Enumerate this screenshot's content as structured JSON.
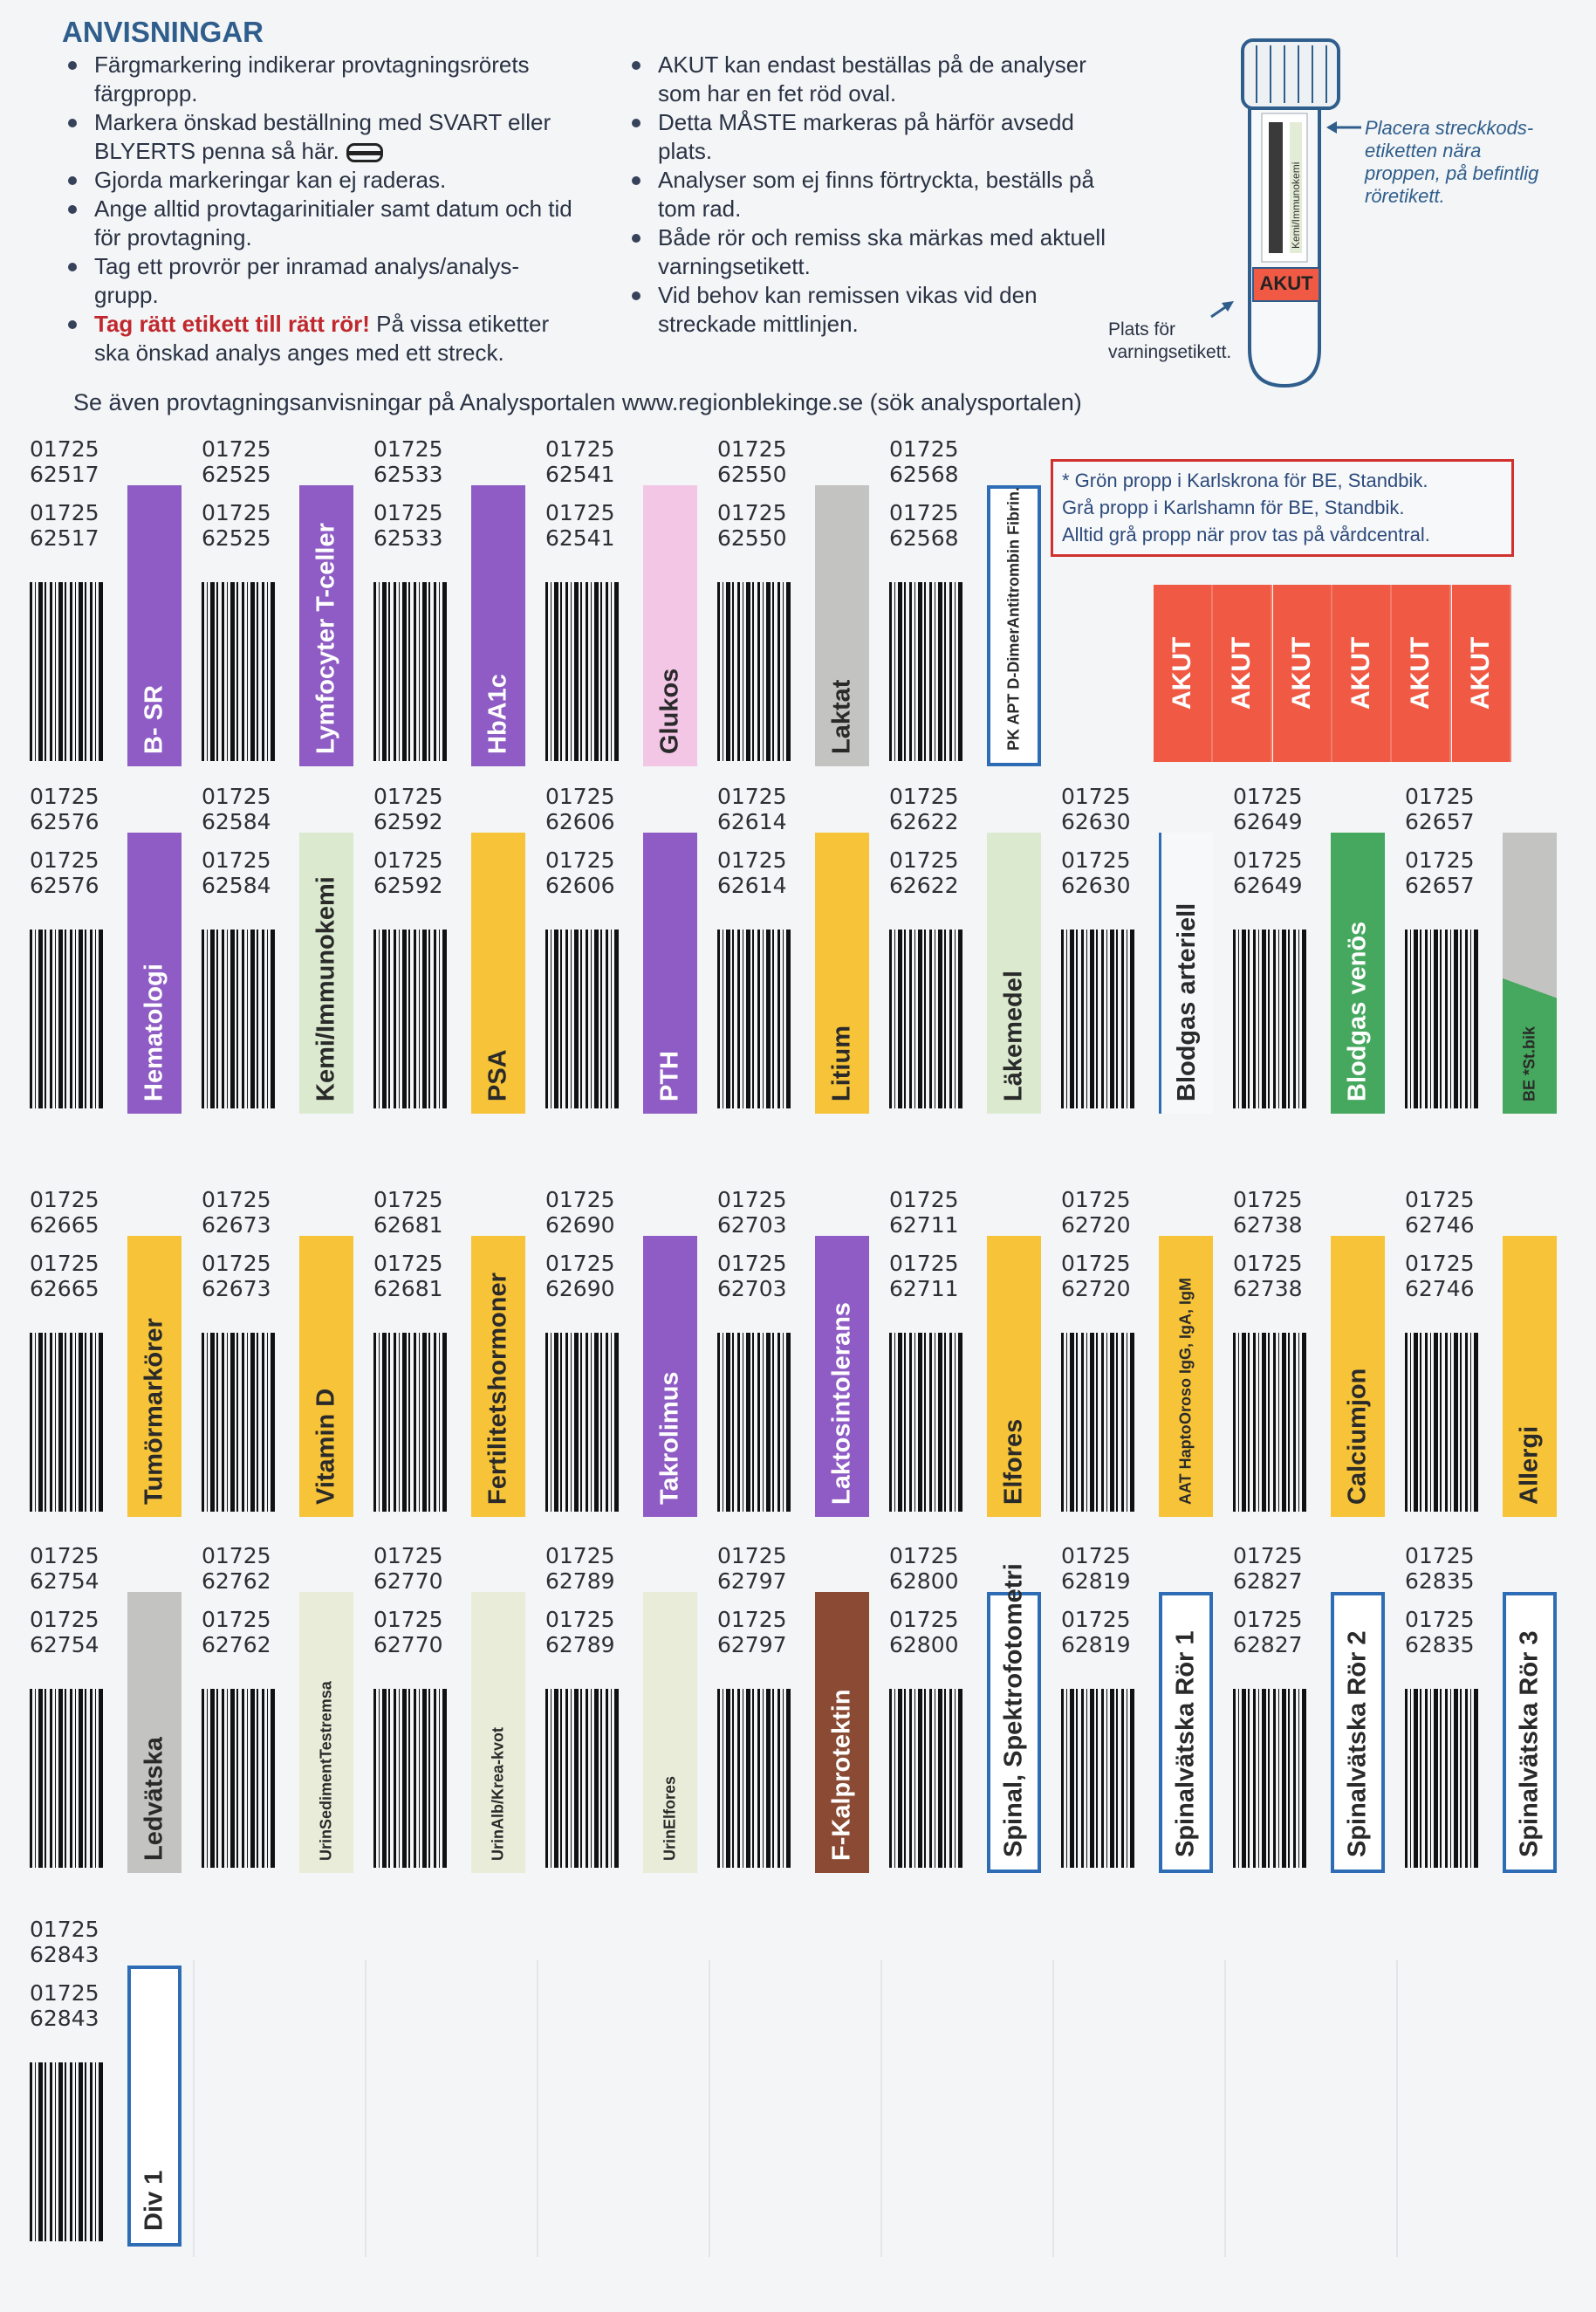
{
  "header": {
    "title": "ANVISNINGAR"
  },
  "instructions": {
    "left": [
      "Färgmarkering indikerar provtagningsrörets färgpropp.",
      "Markera önskad beställning med SVART eller BLYERTS penna så här.",
      "Gjorda markeringar kan ej raderas.",
      "Ange alltid provtagarinitialer samt datum och tid för provtagning.",
      "Tag ett provrör per inramad analys/analys-grupp.",
      {
        "emphasis": "Tag rätt etikett till rätt rör!",
        "text": "På vissa etiketter ska önskad analys anges med ett streck."
      }
    ],
    "right": [
      "AKUT kan endast beställas på de analyser som har en fet röd oval.",
      "Detta MÅSTE markeras på härför avsedd plats.",
      "Analyser som ej finns förtryckta, beställs på tom rad.",
      "Både rör och remiss ska märkas med aktuell varningsetikett.",
      "Vid behov kan remissen vikas vid den streckade mittlinjen."
    ]
  },
  "tube": {
    "label": "Kemi/Immunokemi",
    "akut": "AKUT",
    "barcode_note": [
      "Placera streckkods-",
      "etiketten nära",
      "proppen, på befintlig",
      "röretikett."
    ],
    "warning_note": [
      "Plats för",
      "varningsetikett."
    ]
  },
  "see_also": "Se även provtagningsanvisningar på Analysportalen www.regionblekinge.se (sök analysportalen)",
  "note": {
    "lines": [
      "* Grön propp i Karlskrona för BE, Standbik.",
      "Grå propp i Karlshamn för BE, Standbik.",
      "Alltid grå propp när prov tas på vårdcentral."
    ]
  },
  "akut": [
    "AKUT",
    "AKUT",
    "AKUT",
    "AKUT",
    "AKUT",
    "AKUT"
  ],
  "rows": [
    [
      {
        "prefix": "01725",
        "code": "62517",
        "lines": [
          "B- SR"
        ],
        "style": "fill",
        "color": "#8e5cc4"
      },
      {
        "prefix": "01725",
        "code": "62525",
        "lines": [
          "Lymfocyter T-celler"
        ],
        "style": "fill",
        "color": "#8e5cc4"
      },
      {
        "prefix": "01725",
        "code": "62533",
        "lines": [
          "HbA1c"
        ],
        "style": "fill",
        "color": "#8e5cc4"
      },
      {
        "prefix": "01725",
        "code": "62541",
        "lines": [
          "Glukos"
        ],
        "style": "fill",
        "color": "#f3c6e6"
      },
      {
        "prefix": "01725",
        "code": "62550",
        "lines": [
          "Laktat"
        ],
        "style": "fill",
        "color": "#c3c3c1"
      },
      {
        "prefix": "01725",
        "code": "62568",
        "lines": [
          "PK  APT  D-Dimer",
          "Antitrombin  Fibrin."
        ],
        "style": "outline",
        "color": "#2e6db5"
      }
    ],
    [
      {
        "prefix": "01725",
        "code": "62576",
        "lines": [
          "Hematologi"
        ],
        "style": "fill",
        "color": "#8e5cc4"
      },
      {
        "prefix": "01725",
        "code": "62584",
        "lines": [
          "Kemi/Immunokemi"
        ],
        "style": "fill",
        "color": "#dbe9cf"
      },
      {
        "prefix": "01725",
        "code": "62592",
        "lines": [
          "PSA"
        ],
        "style": "fill",
        "color": "#f7c338"
      },
      {
        "prefix": "01725",
        "code": "62606",
        "lines": [
          "PTH"
        ],
        "style": "fill",
        "color": "#8e5cc4"
      },
      {
        "prefix": "01725",
        "code": "62614",
        "lines": [
          "Litium"
        ],
        "style": "fill",
        "color": "#f7c338"
      },
      {
        "prefix": "01725",
        "code": "62622",
        "lines": [
          "Läkemedel"
        ],
        "style": "fill",
        "color": "#dbe9cf"
      },
      {
        "prefix": "01725",
        "code": "62630",
        "lines": [
          "Blodgas arteriell"
        ],
        "style": "line",
        "color": "#2e6db5"
      },
      {
        "prefix": "01725",
        "code": "62649",
        "lines": [
          "Blodgas venös"
        ],
        "style": "fill",
        "color": "#45a85e"
      },
      {
        "prefix": "01725",
        "code": "62657",
        "lines": [
          "BE *",
          "St.bik"
        ],
        "style": "diagonal",
        "color": "#45a85e"
      }
    ],
    [
      {
        "prefix": "01725",
        "code": "62665",
        "lines": [
          "Tumörmarkörer"
        ],
        "style": "fill",
        "color": "#f7c338"
      },
      {
        "prefix": "01725",
        "code": "62673",
        "lines": [
          "Vitamin D"
        ],
        "style": "fill",
        "color": "#f7c338"
      },
      {
        "prefix": "01725",
        "code": "62681",
        "lines": [
          "Fertilitetshormoner"
        ],
        "style": "fill",
        "color": "#f7c338"
      },
      {
        "prefix": "01725",
        "code": "62690",
        "lines": [
          "Takrolimus"
        ],
        "style": "fill",
        "color": "#8e5cc4"
      },
      {
        "prefix": "01725",
        "code": "62703",
        "lines": [
          "Laktosintolerans"
        ],
        "style": "fill",
        "color": "#8e5cc4"
      },
      {
        "prefix": "01725",
        "code": "62711",
        "lines": [
          "Elfores"
        ],
        "style": "fill",
        "color": "#f7c338"
      },
      {
        "prefix": "01725",
        "code": "62720",
        "lines": [
          "AAT  Hapto",
          "Oroso  IgG, IgA, IgM"
        ],
        "style": "fill",
        "color": "#f7c338"
      },
      {
        "prefix": "01725",
        "code": "62738",
        "lines": [
          "Calciumjon"
        ],
        "style": "fill",
        "color": "#f7c338"
      },
      {
        "prefix": "01725",
        "code": "62746",
        "lines": [
          "Allergi"
        ],
        "style": "fill",
        "color": "#f7c338"
      }
    ],
    [
      {
        "prefix": "01725",
        "code": "62754",
        "lines": [
          "Ledvätska"
        ],
        "style": "fill",
        "color": "#c3c3c1"
      },
      {
        "prefix": "01725",
        "code": "62762",
        "lines": [
          "Urin",
          "Sediment",
          "Testremsa"
        ],
        "style": "fill",
        "color": "#e9ecd8"
      },
      {
        "prefix": "01725",
        "code": "62770",
        "lines": [
          "Urin",
          "Alb/Krea-kvot"
        ],
        "style": "fill",
        "color": "#e9ecd8"
      },
      {
        "prefix": "01725",
        "code": "62789",
        "lines": [
          "Urin",
          "Elfores"
        ],
        "style": "fill",
        "color": "#e9ecd8"
      },
      {
        "prefix": "01725",
        "code": "62797",
        "lines": [
          "F-Kalprotektin"
        ],
        "style": "fill",
        "color": "#8a4a33"
      },
      {
        "prefix": "01725",
        "code": "62800",
        "lines": [
          "Spinal, Spektrofotometri"
        ],
        "style": "outline",
        "color": "#2e6db5"
      },
      {
        "prefix": "01725",
        "code": "62819",
        "lines": [
          "Spinalvätska Rör 1"
        ],
        "style": "outline",
        "color": "#2e6db5"
      },
      {
        "prefix": "01725",
        "code": "62827",
        "lines": [
          "Spinalvätska Rör 2"
        ],
        "style": "outline",
        "color": "#2e6db5"
      },
      {
        "prefix": "01725",
        "code": "62835",
        "lines": [
          "Spinalvätska Rör 3"
        ],
        "style": "outline",
        "color": "#2e6db5"
      }
    ],
    [
      {
        "prefix": "01725",
        "code": "62843",
        "lines": [
          "Div 1"
        ],
        "style": "outline",
        "color": "#2e6db5"
      }
    ]
  ]
}
